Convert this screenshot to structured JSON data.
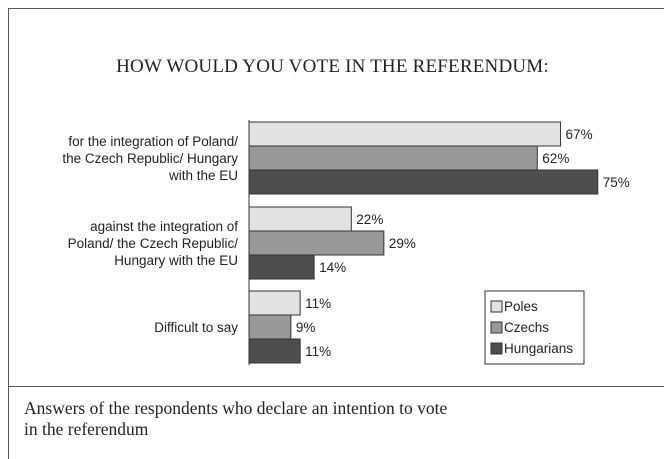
{
  "colors": {
    "series": [
      "#e2e2e2",
      "#999999",
      "#4e4e4e"
    ],
    "bar_stroke": "#333333"
  },
  "chart_data": {
    "type": "bar",
    "orientation": "horizontal",
    "title": "HOW WOULD YOU VOTE IN THE REFERENDUM:",
    "categories": [
      [
        "for the integration of Poland/",
        "the Czech Republic/ Hungary",
        "with the EU"
      ],
      [
        "against the integration of",
        "Poland/ the Czech Republic/",
        "Hungary with the EU"
      ],
      [
        "Difficult to say"
      ]
    ],
    "series": [
      {
        "name": "Poles",
        "values": [
          67,
          22,
          11
        ],
        "labels": [
          "67%",
          "22%",
          "11%"
        ]
      },
      {
        "name": "Czechs",
        "values": [
          62,
          29,
          9
        ],
        "labels": [
          "62%",
          "29%",
          "9%"
        ]
      },
      {
        "name": "Hungarians",
        "values": [
          75,
          14,
          11
        ],
        "labels": [
          "75%",
          "14%",
          "11%"
        ]
      }
    ],
    "xlim": [
      0,
      100
    ],
    "grid": false,
    "legend": "bottom-right"
  },
  "caption": {
    "lines": [
      "Answers of the respondents who declare an intention to vote",
      "in the referendum"
    ]
  }
}
